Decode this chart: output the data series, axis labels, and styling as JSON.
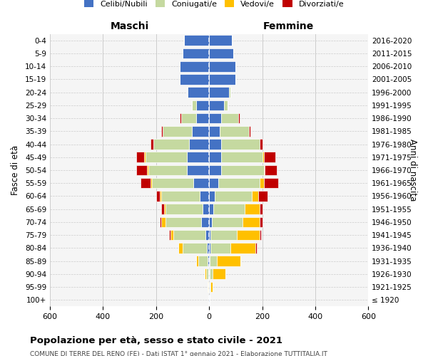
{
  "age_groups": [
    "100+",
    "95-99",
    "90-94",
    "85-89",
    "80-84",
    "75-79",
    "70-74",
    "65-69",
    "60-64",
    "55-59",
    "50-54",
    "45-49",
    "40-44",
    "35-39",
    "30-34",
    "25-29",
    "20-24",
    "15-19",
    "10-14",
    "5-9",
    "0-4"
  ],
  "birth_years": [
    "≤ 1920",
    "1921-1925",
    "1926-1930",
    "1931-1935",
    "1936-1940",
    "1941-1945",
    "1946-1950",
    "1951-1955",
    "1956-1960",
    "1961-1965",
    "1966-1970",
    "1971-1975",
    "1976-1980",
    "1981-1985",
    "1986-1990",
    "1991-1995",
    "1996-2000",
    "2001-2005",
    "2006-2010",
    "2011-2015",
    "2016-2020"
  ],
  "male": {
    "celibi": [
      2,
      2,
      3,
      5,
      10,
      15,
      30,
      25,
      35,
      60,
      85,
      85,
      75,
      65,
      50,
      50,
      80,
      110,
      110,
      100,
      95
    ],
    "coniugati": [
      0,
      2,
      8,
      35,
      90,
      120,
      135,
      140,
      145,
      155,
      145,
      155,
      135,
      110,
      55,
      15,
      5,
      0,
      0,
      0,
      0
    ],
    "vedovi": [
      0,
      2,
      5,
      10,
      15,
      10,
      15,
      5,
      5,
      5,
      5,
      5,
      0,
      0,
      0,
      0,
      0,
      0,
      0,
      0,
      0
    ],
    "divorziati": [
      0,
      0,
      0,
      0,
      0,
      5,
      5,
      10,
      15,
      40,
      40,
      30,
      10,
      5,
      5,
      0,
      0,
      0,
      0,
      0,
      0
    ]
  },
  "female": {
    "nubili": [
      1,
      1,
      2,
      3,
      5,
      5,
      10,
      15,
      20,
      35,
      45,
      45,
      45,
      40,
      45,
      55,
      75,
      100,
      100,
      90,
      85
    ],
    "coniugate": [
      0,
      3,
      10,
      25,
      75,
      100,
      115,
      120,
      140,
      155,
      160,
      155,
      145,
      110,
      65,
      15,
      5,
      0,
      0,
      0,
      0
    ],
    "vedove": [
      2,
      10,
      50,
      90,
      95,
      85,
      65,
      55,
      25,
      15,
      5,
      5,
      0,
      0,
      0,
      0,
      0,
      0,
      0,
      0,
      0
    ],
    "divorziate": [
      0,
      0,
      0,
      0,
      5,
      5,
      10,
      10,
      35,
      55,
      45,
      45,
      10,
      5,
      5,
      0,
      0,
      0,
      0,
      0,
      0
    ]
  },
  "colors": {
    "celibi": "#4472C4",
    "coniugati": "#C5D9A0",
    "vedovi": "#FFC000",
    "divorziati": "#C00000"
  },
  "legend_labels": [
    "Celibi/Nubili",
    "Coniugati/e",
    "Vedovi/e",
    "Divorziati/e"
  ],
  "title": "Popolazione per età, sesso e stato civile - 2021",
  "subtitle": "COMUNE DI TERRE DEL RENO (FE) - Dati ISTAT 1° gennaio 2021 - Elaborazione TUTTITALIA.IT",
  "xlabel_left": "Maschi",
  "xlabel_right": "Femmine",
  "ylabel_left": "Fasce di età",
  "ylabel_right": "Anni di nascita",
  "xlim": 600,
  "bg_color": "#f5f5f5",
  "grid_color": "#cccccc"
}
